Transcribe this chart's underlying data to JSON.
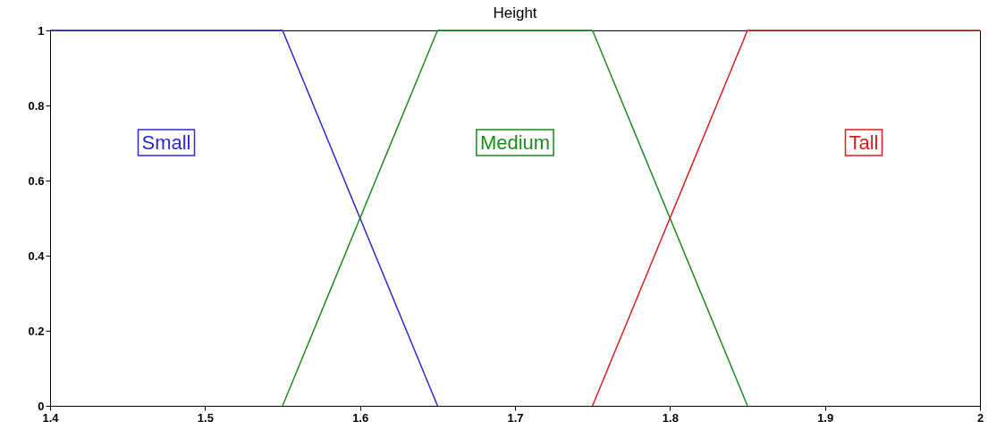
{
  "chart_data": {
    "type": "line",
    "title": "Height",
    "series": [
      {
        "name": "Small",
        "color": "#2a2ad0",
        "x": [
          1.4,
          1.55,
          1.65
        ],
        "values": [
          1,
          1,
          0
        ]
      },
      {
        "name": "Medium",
        "color": "#1e8a1e",
        "x": [
          1.55,
          1.65,
          1.75,
          1.85
        ],
        "values": [
          0,
          1,
          1,
          0
        ]
      },
      {
        "name": "Tall",
        "color": "#d42020",
        "x": [
          1.75,
          1.85,
          2
        ],
        "values": [
          0,
          1,
          1
        ]
      }
    ],
    "xlim": [
      1.4,
      2
    ],
    "xticks": [
      1.4,
      1.5,
      1.6,
      1.7,
      1.8,
      1.9,
      2
    ],
    "ylim": [
      0,
      1
    ],
    "yticks": [
      0,
      0.2,
      0.4,
      0.6,
      0.8,
      1
    ],
    "grid": false,
    "legend": false,
    "marker": "none",
    "line_style": "solid"
  }
}
